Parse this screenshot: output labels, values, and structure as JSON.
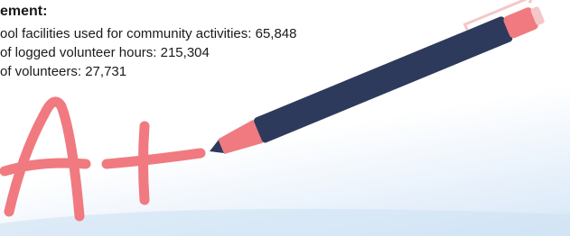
{
  "heading": "ement:",
  "items": [
    "ool facilities used for community activities: 65,848",
    "of logged volunteer hours: 215,304",
    "of volunteers: 27,731"
  ]
}
